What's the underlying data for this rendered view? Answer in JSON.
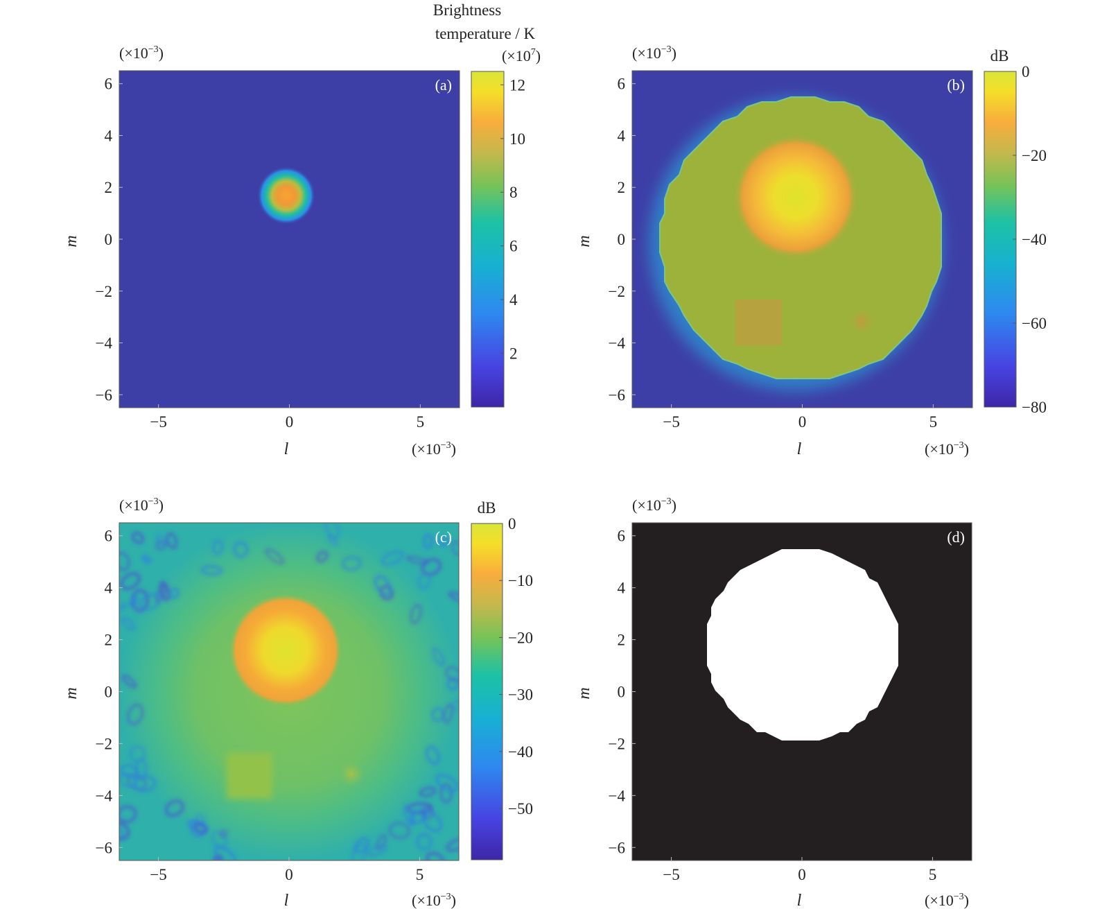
{
  "chart_data": [
    {
      "panel": "(a)",
      "type": "heatmap",
      "title": "",
      "xlabel": "l",
      "ylabel": "m",
      "x_scale_label": "(×10⁻³)",
      "y_scale_label": "(×10⁻³)",
      "xlim": [
        -6.5,
        6.5
      ],
      "ylim": [
        -6.5,
        6.5
      ],
      "xticks": [
        -5,
        0,
        5
      ],
      "yticks": [
        -6,
        -4,
        -2,
        0,
        2,
        4,
        6
      ],
      "colorbar": {
        "title_lines": [
          "Brightness",
          "temperature / K"
        ],
        "scale_label": "(×10⁷)",
        "range": [
          0,
          12.5
        ],
        "ticks": [
          2,
          4,
          6,
          8,
          10,
          12
        ]
      },
      "features": [
        {
          "shape": "gaussian-spot",
          "center": [
            0,
            1.8
          ],
          "peak": 12.5
        }
      ]
    },
    {
      "panel": "(b)",
      "type": "heatmap",
      "title": "",
      "xlabel": "l",
      "ylabel": "m",
      "x_scale_label": "(×10⁻³)",
      "y_scale_label": "(×10⁻³)",
      "xlim": [
        -6.5,
        6.5
      ],
      "ylim": [
        -6.5,
        6.5
      ],
      "xticks": [
        -5,
        0,
        5
      ],
      "yticks": [
        -6,
        -4,
        -2,
        0,
        2,
        4,
        6
      ],
      "colorbar": {
        "title_lines": [
          "dB"
        ],
        "range": [
          -80,
          0
        ],
        "ticks": [
          0,
          -20,
          -40,
          -60,
          -80
        ]
      },
      "features": [
        {
          "shape": "disk",
          "center": [
            0,
            0
          ],
          "radius": 5.4,
          "level_db": -25
        },
        {
          "shape": "gaussian-spot",
          "center": [
            0,
            1.8
          ],
          "peak_db": 0
        },
        {
          "shape": "square",
          "x_range": [
            -2.4,
            -0.6
          ],
          "y_range": [
            -4.0,
            -2.2
          ],
          "level_db": -22
        },
        {
          "shape": "gaussian-spot",
          "center": [
            2.4,
            -3.1
          ],
          "peak_db": -20
        }
      ]
    },
    {
      "panel": "(c)",
      "type": "heatmap",
      "title": "",
      "xlabel": "l",
      "ylabel": "m",
      "x_scale_label": "(×10⁻³)",
      "y_scale_label": "(×10⁻³)",
      "xlim": [
        -6.5,
        6.5
      ],
      "ylim": [
        -6.5,
        6.5
      ],
      "xticks": [
        -5,
        0,
        5
      ],
      "yticks": [
        -6,
        -4,
        -2,
        0,
        2,
        4,
        6
      ],
      "colorbar": {
        "title_lines": [
          "dB"
        ],
        "range": [
          -59,
          0
        ],
        "ticks": [
          0,
          -10,
          -20,
          -30,
          -40,
          -50
        ]
      },
      "features": [
        {
          "shape": "gaussian-spot",
          "center": [
            0,
            1.8
          ],
          "peak_db": 0
        },
        {
          "shape": "square",
          "x_range": [
            -2.4,
            -0.6
          ],
          "y_range": [
            -4.0,
            -2.2
          ],
          "level_db": -19
        },
        {
          "shape": "gaussian-spot",
          "center": [
            2.4,
            -3.1
          ],
          "peak_db": -19
        }
      ]
    },
    {
      "panel": "(d)",
      "type": "heatmap",
      "title": "",
      "xlabel": "l",
      "ylabel": "m",
      "x_scale_label": "(×10⁻³)",
      "y_scale_label": "(×10⁻³)",
      "xlim": [
        -6.5,
        6.5
      ],
      "ylim": [
        -6.5,
        6.5
      ],
      "xticks": [
        -5,
        0,
        5
      ],
      "yticks": [
        -6,
        -4,
        -2,
        0,
        2,
        4,
        6
      ],
      "colorbar": null,
      "features": [
        {
          "shape": "binary-disk",
          "center": [
            0,
            1.8
          ],
          "radius": 3.7
        }
      ]
    }
  ],
  "colors": {
    "colormap": [
      "#3e26a8",
      "#4743e2",
      "#2e89f0",
      "#18b0d2",
      "#1cc2a4",
      "#76c358",
      "#c6b84c",
      "#f8ad3d",
      "#f5df29",
      "#d8e53a"
    ],
    "mask_background": "#231f20",
    "mask_foreground": "#ffffff"
  }
}
